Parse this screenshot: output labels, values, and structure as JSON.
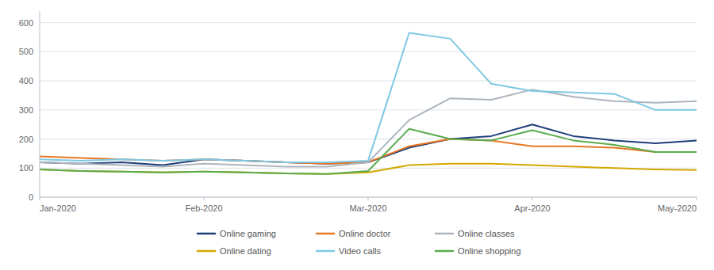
{
  "chart_data": {
    "type": "line",
    "x": [
      0,
      1,
      2,
      3,
      4,
      5,
      6,
      7,
      8,
      9,
      10,
      11,
      12,
      13,
      14,
      15,
      16
    ],
    "xlim": [
      0,
      16
    ],
    "xticks": [
      {
        "value": 0,
        "label": "Jan-2020"
      },
      {
        "value": 4,
        "label": "Feb-2020"
      },
      {
        "value": 8,
        "label": "Mar-2020"
      },
      {
        "value": 12,
        "label": "Apr-2020"
      },
      {
        "value": 16,
        "label": "May-2020"
      }
    ],
    "ylim": [
      0,
      640
    ],
    "yticks": [
      0,
      100,
      200,
      300,
      400,
      500,
      600
    ],
    "grid": true,
    "legend": "bottom",
    "series": [
      {
        "name": "Online gaming",
        "color": "#1f3f7a",
        "values": [
          120,
          115,
          120,
          110,
          130,
          125,
          120,
          115,
          120,
          170,
          200,
          210,
          250,
          210,
          195,
          185,
          195
        ]
      },
      {
        "name": "Online doctor",
        "color": "#e87722",
        "values": [
          140,
          135,
          130,
          125,
          130,
          125,
          120,
          115,
          120,
          175,
          200,
          195,
          175,
          175,
          170,
          155,
          155
        ]
      },
      {
        "name": "Online classes",
        "color": "#adb5bd",
        "values": [
          120,
          115,
          110,
          105,
          115,
          110,
          105,
          105,
          120,
          265,
          340,
          335,
          370,
          345,
          330,
          325,
          330
        ]
      },
      {
        "name": "Online dating",
        "color": "#d4a800",
        "values": [
          95,
          90,
          88,
          85,
          88,
          85,
          82,
          80,
          85,
          110,
          115,
          115,
          110,
          105,
          100,
          95,
          93
        ]
      },
      {
        "name": "Video calls",
        "color": "#7ec8e3",
        "values": [
          130,
          125,
          130,
          125,
          130,
          125,
          120,
          120,
          125,
          565,
          545,
          390,
          365,
          360,
          355,
          300,
          300
        ]
      },
      {
        "name": "Online shopping",
        "color": "#5aab4e",
        "values": [
          95,
          90,
          88,
          85,
          88,
          85,
          82,
          80,
          90,
          235,
          200,
          195,
          230,
          195,
          180,
          155,
          155
        ]
      }
    ]
  }
}
